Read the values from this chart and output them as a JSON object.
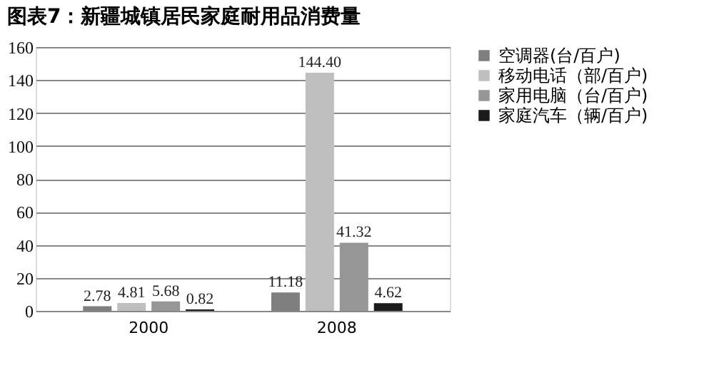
{
  "chart_data": {
    "type": "bar",
    "title": "图表7：新疆城镇居民家庭耐用品消费量",
    "categories": [
      "2000",
      "2008"
    ],
    "series": [
      {
        "name": "空调器(台/百户)",
        "color": "#7f7f7f",
        "values": [
          2.78,
          11.18
        ],
        "value_labels": [
          "2.78",
          "11.18"
        ]
      },
      {
        "name": "移动电话（部/百户)",
        "color": "#bfbfbf",
        "values": [
          4.81,
          144.4
        ],
        "value_labels": [
          "4.81",
          "144.40"
        ]
      },
      {
        "name": "家用电脑（台/百户)",
        "color": "#969696",
        "values": [
          5.68,
          41.32
        ],
        "value_labels": [
          "5.68",
          "41.32"
        ]
      },
      {
        "name": "家庭汽车（辆/百户)",
        "color": "#1a1a1a",
        "values": [
          0.82,
          4.62
        ],
        "value_labels": [
          "0.82",
          "4.62"
        ]
      }
    ],
    "ylim": [
      0,
      160
    ],
    "yticks": [
      0,
      20,
      40,
      60,
      80,
      100,
      120,
      140,
      160
    ],
    "grid": "y",
    "legend": "right"
  }
}
